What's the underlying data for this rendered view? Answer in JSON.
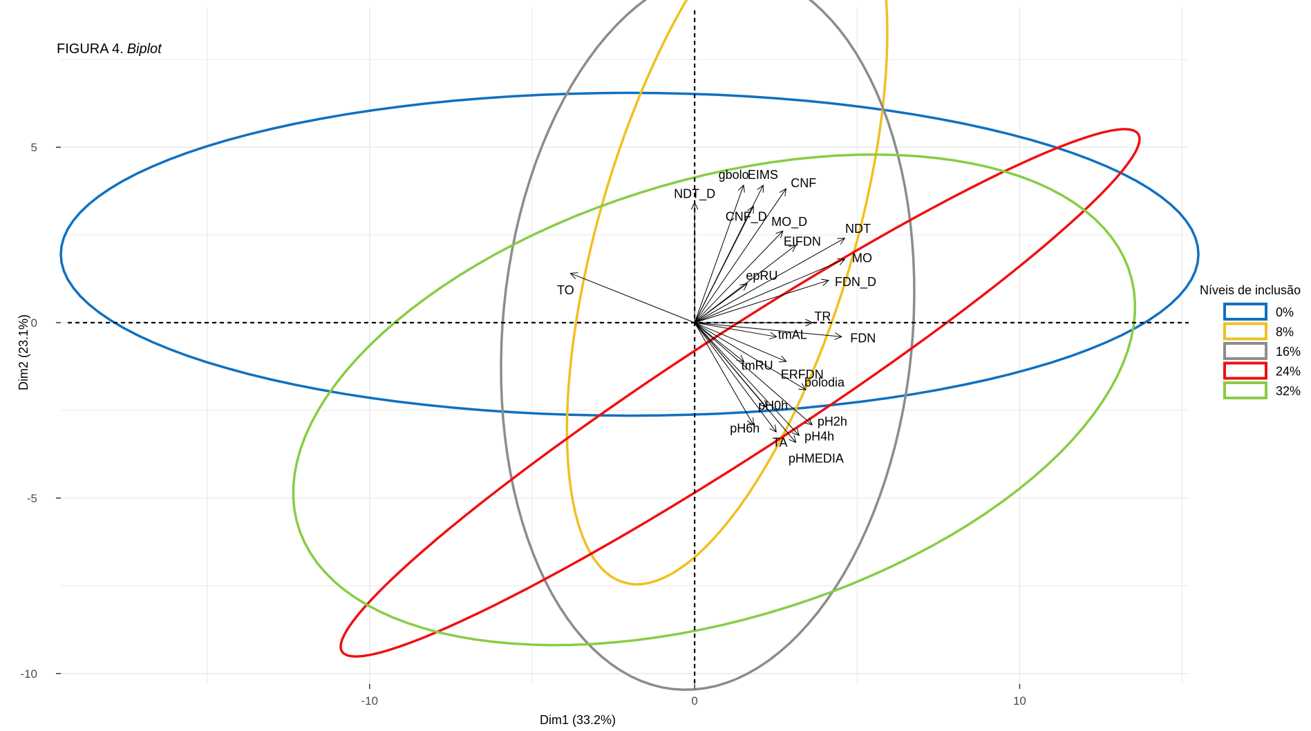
{
  "chart_data": {
    "type": "biplot",
    "title": "FIGURA 4.",
    "title_italic": "Biplot",
    "xlabel": "Dim1 (33.2%)",
    "ylabel": "Dim2 (23.1%)",
    "xlim": [
      -19.5,
      15.2
    ],
    "ylim": [
      -10.3,
      9.0
    ],
    "x_ticks": [
      -10,
      0,
      10
    ],
    "y_ticks": [
      5,
      0,
      -5,
      -10
    ],
    "x_tick_labels": [
      "-10",
      "0",
      "10"
    ],
    "y_tick_labels": [
      "5",
      "0",
      "-5",
      "-10"
    ],
    "grid": true,
    "legend": {
      "title": "Níveis de inclusão",
      "position": "right",
      "items": [
        {
          "label": "0%",
          "color": "#1070c0"
        },
        {
          "label": "8%",
          "color": "#f0c020"
        },
        {
          "label": "16%",
          "color": "#8c8c8c"
        },
        {
          "label": "24%",
          "color": "#f01010"
        },
        {
          "label": "32%",
          "color": "#88cc44"
        }
      ]
    },
    "ellipses": [
      {
        "group": "0%",
        "color": "#1070c0",
        "cx": -2.0,
        "cy": 1.95,
        "a": 17.5,
        "b": 4.6,
        "angle": 0
      },
      {
        "group": "8%",
        "color": "#f0c020",
        "cx": 1.0,
        "cy": 2.6,
        "a": 10.5,
        "b": 3.9,
        "angle": 72
      },
      {
        "group": "16%",
        "color": "#8c8c8c",
        "cx": 0.4,
        "cy": -0.2,
        "a": 10.3,
        "b": 6.3,
        "angle": 84
      },
      {
        "group": "24%",
        "color": "#f01010",
        "cx": 1.4,
        "cy": -2.0,
        "a": 14.3,
        "b": 1.75,
        "angle": 31
      },
      {
        "group": "32%",
        "color": "#88cc44",
        "cx": 0.6,
        "cy": -2.2,
        "a": 13.3,
        "b": 6.3,
        "angle": 15
      }
    ],
    "variables": [
      {
        "label": "NDT_D",
        "x": 0.0,
        "y": 3.4
      },
      {
        "label": "gbolo",
        "x": 1.5,
        "y": 3.9
      },
      {
        "label": "EIMS",
        "x": 2.1,
        "y": 3.9
      },
      {
        "label": "CNF",
        "x": 2.8,
        "y": 3.8
      },
      {
        "label": "CNF_D",
        "x": 1.8,
        "y": 3.3
      },
      {
        "label": "MO_D",
        "x": 2.7,
        "y": 2.6
      },
      {
        "label": "EIFDN",
        "x": 3.1,
        "y": 2.2
      },
      {
        "label": "NDT",
        "x": 4.6,
        "y": 2.4
      },
      {
        "label": "MO",
        "x": 4.6,
        "y": 1.8
      },
      {
        "label": "FDN_D",
        "x": 4.1,
        "y": 1.2
      },
      {
        "label": "epRU",
        "x": 1.6,
        "y": 1.1
      },
      {
        "label": "TO",
        "x": -3.8,
        "y": 1.4
      },
      {
        "label": "TR",
        "x": 3.6,
        "y": 0.0
      },
      {
        "label": "tmAL",
        "x": 2.5,
        "y": -0.4
      },
      {
        "label": "FDN",
        "x": 4.5,
        "y": -0.4
      },
      {
        "label": "ERFDN",
        "x": 2.8,
        "y": -1.1
      },
      {
        "label": "tmRU",
        "x": 1.5,
        "y": -1.1
      },
      {
        "label": "bolodia",
        "x": 3.4,
        "y": -1.9
      },
      {
        "label": "pH0h",
        "x": 2.2,
        "y": -2.4
      },
      {
        "label": "pH2h",
        "x": 3.6,
        "y": -2.9
      },
      {
        "label": "pH6h",
        "x": 1.8,
        "y": -2.9
      },
      {
        "label": "TA",
        "x": 2.5,
        "y": -3.1
      },
      {
        "label": "pH4h",
        "x": 3.2,
        "y": -3.2
      },
      {
        "label": "pHMEDIA",
        "x": 3.1,
        "y": -3.4
      }
    ]
  }
}
